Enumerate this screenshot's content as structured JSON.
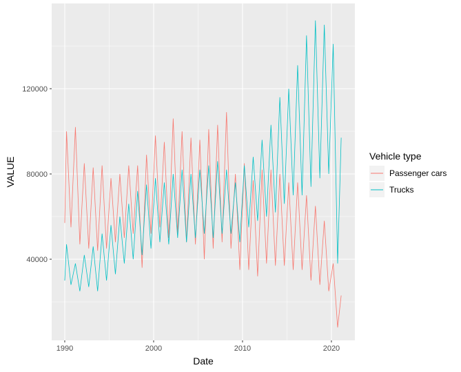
{
  "chart_data": {
    "type": "line",
    "x_label": "Date",
    "y_label": "VALUE",
    "legend_title": "Vehicle type",
    "legend": "right",
    "x": [
      1990,
      1990.2,
      1990.7,
      1991.2,
      1991.7,
      1992.2,
      1992.7,
      1993.2,
      1993.7,
      1994.2,
      1994.7,
      1995.2,
      1995.7,
      1996.2,
      1996.7,
      1997.2,
      1997.7,
      1998.2,
      1998.7,
      1999.2,
      1999.7,
      2000.2,
      2000.7,
      2001.2,
      2001.7,
      2002.2,
      2002.7,
      2003.2,
      2003.7,
      2004.2,
      2004.7,
      2005.2,
      2005.7,
      2006.2,
      2006.7,
      2007.2,
      2007.7,
      2008.2,
      2008.7,
      2009.2,
      2009.7,
      2010.2,
      2010.7,
      2011.2,
      2011.7,
      2012.2,
      2012.7,
      2013.2,
      2013.7,
      2014.2,
      2014.7,
      2015.2,
      2015.7,
      2016.2,
      2016.7,
      2017.2,
      2017.7,
      2018.2,
      2018.7,
      2019.2,
      2019.7,
      2020.2,
      2020.7,
      2021.1
    ],
    "series": [
      {
        "name": "Passenger cars",
        "color": "#F8766D",
        "values": [
          57000,
          100000,
          55000,
          102000,
          47000,
          85000,
          45000,
          83000,
          44000,
          84000,
          45000,
          78000,
          48000,
          80000,
          50000,
          84000,
          52000,
          84000,
          36000,
          89000,
          52000,
          98000,
          55000,
          95000,
          50000,
          106000,
          52000,
          100000,
          48000,
          97000,
          47000,
          96000,
          40000,
          101000,
          45000,
          103000,
          48000,
          109000,
          45000,
          80000,
          35000,
          85000,
          35000,
          77000,
          32000,
          82000,
          38000,
          82000,
          37000,
          80000,
          37000,
          76000,
          35000,
          76000,
          35000,
          70000,
          30000,
          65000,
          28000,
          58000,
          25000,
          38000,
          8000,
          23000
        ]
      },
      {
        "name": "Trucks",
        "color": "#00BFC4",
        "values": [
          30000,
          47000,
          28000,
          38000,
          25000,
          42000,
          27000,
          46000,
          25000,
          52000,
          30000,
          56000,
          33000,
          60000,
          38000,
          66000,
          40000,
          72000,
          42000,
          75000,
          45000,
          78000,
          48000,
          76000,
          47000,
          80000,
          50000,
          82000,
          48000,
          80000,
          50000,
          82000,
          52000,
          84000,
          50000,
          86000,
          52000,
          82000,
          52000,
          76000,
          48000,
          84000,
          55000,
          88000,
          58000,
          96000,
          60000,
          103000,
          62000,
          116000,
          66000,
          120000,
          70000,
          131000,
          70000,
          145000,
          74000,
          152000,
          78000,
          150000,
          80000,
          141000,
          38000,
          97000
        ]
      }
    ],
    "xlim": [
      1988.53,
      2022.64
    ],
    "xticks": [
      1990,
      2000,
      2010,
      2020
    ],
    "xminorticks": [
      1995,
      2005,
      2015
    ],
    "ylim": [
      1935,
      160000
    ],
    "yticks": [
      40000,
      80000,
      120000
    ],
    "yminorticks": [
      20000,
      60000,
      100000,
      140000
    ],
    "panel_color": "#EBEBEB",
    "grid": true
  }
}
